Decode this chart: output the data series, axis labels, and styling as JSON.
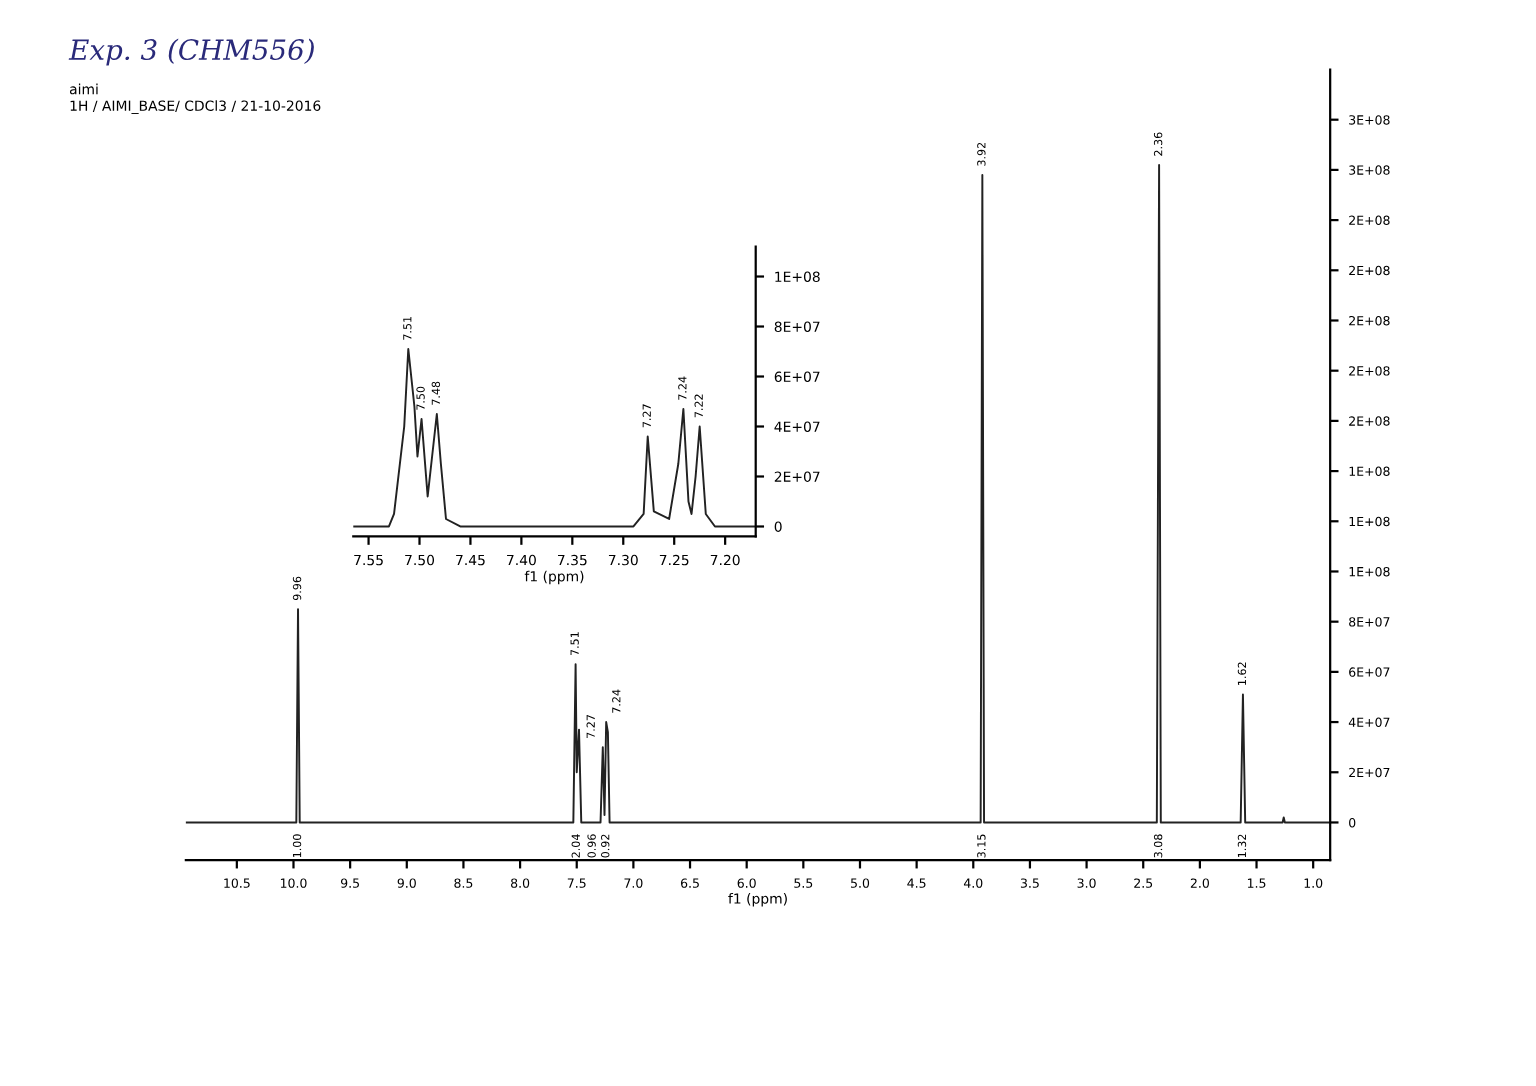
{
  "chart_data": [
    {
      "type": "line",
      "title": "Exp. 3 (CHM556)",
      "subtitle": "aimi\n1H / AIMI_BASE/ CDCl3 / 21-10-2016",
      "xlabel": "f1 (ppm)",
      "series": [
        {
          "color": "#222222",
          "x": [
            10.95,
            10.0,
            9.975,
            9.96,
            9.945,
            7.6,
            7.53,
            7.51,
            7.5,
            7.48,
            7.46,
            7.29,
            7.27,
            7.255,
            7.24,
            7.225,
            7.21,
            4.0,
            3.935,
            3.92,
            3.905,
            3.8,
            2.38,
            2.36,
            2.345,
            1.64,
            1.62,
            1.6,
            1.27,
            1.26,
            1.25,
            0.85
          ],
          "values": [
            0,
            0,
            0,
            85000000,
            0,
            0,
            0,
            63000000,
            20000000,
            37000000,
            0,
            0,
            30000000,
            3000000,
            40000000,
            36000000,
            0,
            0,
            0,
            258000000,
            0,
            0,
            0,
            262000000,
            0,
            0,
            51000000,
            0,
            0,
            2000000,
            0,
            0
          ]
        }
      ],
      "xlim": [
        10.95,
        0.85
      ],
      "ylim": [
        -15000000,
        300000000
      ],
      "xticks": [
        10.5,
        {
          "value": 10,
          "label": "10.0"
        },
        9.5,
        {
          "value": 9,
          "label": "9.0"
        },
        8.5,
        {
          "value": 8,
          "label": "8.0"
        },
        7.5,
        {
          "value": 7,
          "label": "7.0"
        },
        6.5,
        {
          "value": 6,
          "label": "6.0"
        },
        5.5,
        {
          "value": 5,
          "label": "5.0"
        },
        4.5,
        {
          "value": 4,
          "label": "4.0"
        },
        3.5,
        {
          "value": 3,
          "label": "3.0"
        },
        2.5,
        {
          "value": 2,
          "label": "2.0"
        },
        1.5,
        {
          "value": 1,
          "label": "1.0"
        }
      ],
      "yticks": [
        {
          "value": 0,
          "label": "0"
        },
        {
          "value": 20000000,
          "label": "2E+07"
        },
        {
          "value": 40000000,
          "label": "4E+07"
        },
        {
          "value": 60000000,
          "label": "6E+07"
        },
        {
          "value": 80000000,
          "label": "8E+07"
        },
        {
          "value": 100000000,
          "label": "1E+08"
        },
        {
          "value": 120000000,
          "label": "1E+08"
        },
        {
          "value": 140000000,
          "label": "1E+08"
        },
        {
          "value": 160000000,
          "label": "2E+08"
        },
        {
          "value": 180000000,
          "label": "2E+08"
        },
        {
          "value": 200000000,
          "label": "2E+08"
        },
        {
          "value": 220000000,
          "label": "2E+08"
        },
        {
          "value": 240000000,
          "label": "2E+08"
        },
        {
          "value": 260000000,
          "label": "3E+08"
        },
        {
          "value": 280000000,
          "label": "3E+08"
        }
      ],
      "annotations": [
        {
          "text": "9.96",
          "x": 9.96,
          "y": 85000000
        },
        {
          "text": "7.51",
          "x": 7.51,
          "y": 63000000
        },
        {
          "text": "7.27",
          "x": 7.27,
          "y": 30000000
        },
        {
          "text": "7.24",
          "x": 7.24,
          "y": 40000000
        },
        {
          "text": "3.92",
          "x": 3.92,
          "y": 258000000
        },
        {
          "text": "2.36",
          "x": 2.36,
          "y": 262000000
        },
        {
          "text": "1.62",
          "x": 1.62,
          "y": 51000000
        },
        {
          "text": "1.00",
          "x": 9.96,
          "y": 0
        },
        {
          "text": "2.04",
          "x": 7.5,
          "y": 0
        },
        {
          "text": "0.96",
          "x": 7.36,
          "y": 0
        },
        {
          "text": "0.92",
          "x": 7.24,
          "y": 0
        },
        {
          "text": "3.15",
          "x": 3.92,
          "y": 0
        },
        {
          "text": "3.08",
          "x": 2.36,
          "y": 0
        },
        {
          "text": "1.32",
          "x": 1.62,
          "y": 0
        }
      ]
    },
    {
      "type": "line",
      "xlabel": "f1 (ppm)",
      "series": [
        {
          "color": "#222222",
          "x": [
            7.565,
            7.53,
            7.525,
            7.515,
            7.511,
            7.505,
            7.502,
            7.498,
            7.492,
            7.483,
            7.479,
            7.474,
            7.46,
            7.29,
            7.28,
            7.276,
            7.27,
            7.255,
            7.246,
            7.241,
            7.236,
            7.233,
            7.229,
            7.225,
            7.219,
            7.21,
            7.17
          ],
          "values": [
            0,
            0,
            5000000,
            40000000,
            71000000,
            48000000,
            28000000,
            43000000,
            12000000,
            45000000,
            25000000,
            3000000,
            0,
            0,
            5000000,
            36000000,
            6000000,
            3000000,
            25000000,
            47000000,
            10000000,
            5000000,
            20000000,
            40000000,
            5000000,
            0,
            0
          ]
        }
      ],
      "xlim": [
        7.565,
        7.17
      ],
      "ylim": [
        -4000000,
        112000000
      ],
      "xticks": [
        {
          "value": 7.55,
          "label": "7.55"
        },
        {
          "value": 7.5,
          "label": "7.50"
        },
        {
          "value": 7.45,
          "label": "7.45"
        },
        {
          "value": 7.4,
          "label": "7.40"
        },
        {
          "value": 7.35,
          "label": "7.35"
        },
        {
          "value": 7.3,
          "label": "7.30"
        },
        {
          "value": 7.25,
          "label": "7.25"
        },
        {
          "value": 7.2,
          "label": "7.20"
        }
      ],
      "yticks": [
        {
          "value": 0,
          "label": "0"
        },
        {
          "value": 20000000,
          "label": "2E+07"
        },
        {
          "value": 40000000,
          "label": "4E+07"
        },
        {
          "value": 60000000,
          "label": "6E+07"
        },
        {
          "value": 80000000,
          "label": "8E+07"
        },
        {
          "value": 100000000,
          "label": "1E+08"
        }
      ],
      "annotations": [
        {
          "text": "7.51",
          "x": 7.511,
          "y": 71000000
        },
        {
          "text": "7.50",
          "x": 7.498,
          "y": 43000000
        },
        {
          "text": "7.48",
          "x": 7.483,
          "y": 45000000
        },
        {
          "text": "7.27",
          "x": 7.276,
          "y": 36000000
        },
        {
          "text": "7.24",
          "x": 7.241,
          "y": 47000000
        },
        {
          "text": "7.22",
          "x": 7.225,
          "y": 40000000
        }
      ]
    }
  ]
}
